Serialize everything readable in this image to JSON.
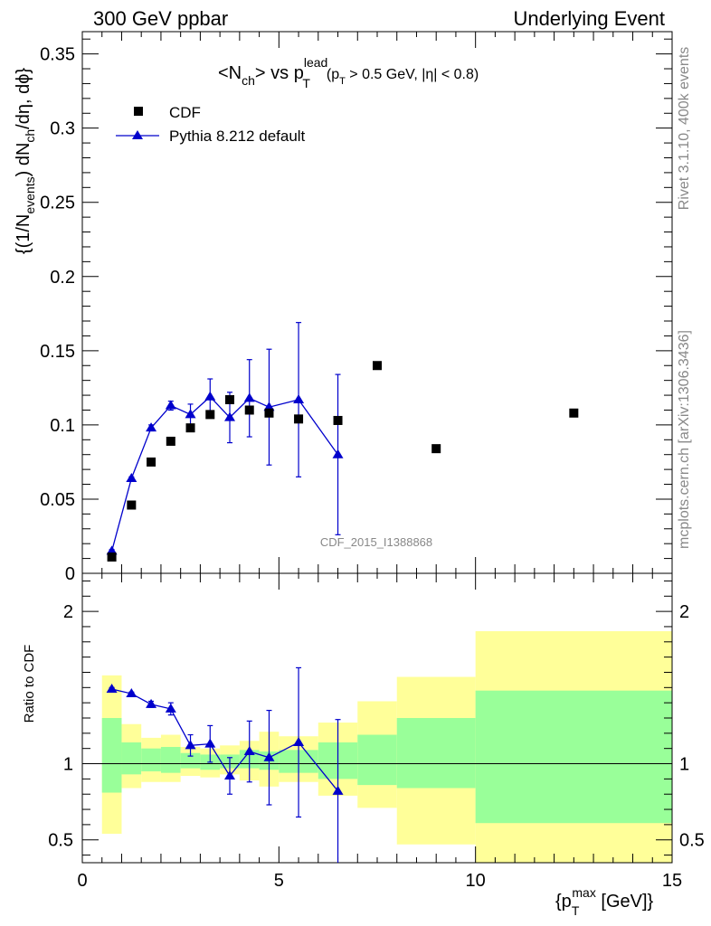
{
  "header": {
    "left_label": "300 GeV ppbar",
    "right_label": "Underlying Event"
  },
  "side_labels": {
    "top": "Rivet 3.1.10,  400k events",
    "bottom": "mcplots.cern.ch [arXiv:1306.3436]"
  },
  "watermark": "CDF_2015_I1388868",
  "title": {
    "main": "<N",
    "sub_ch": "ch",
    "vs": "> vs p",
    "sup_lead": "lead",
    "sub_T": "T",
    "cut_open": "(p",
    "cut_sub_T": "T",
    "cut_rest": " > 0.5 GeV, |η| < 0.8)"
  },
  "ylabel_main": {
    "p1": "{(1/N",
    "s1": "events",
    "p2": ") dN",
    "s2": "ch",
    "p3": "/dη, dϕ}"
  },
  "ylabel_ratio": "Ratio to CDF",
  "xlabel": {
    "p1": "{p",
    "sub": "T",
    "sup": "max",
    "p2": " [GeV]}"
  },
  "legend": {
    "data_label": "CDF",
    "mc_label": "Pythia 8.212 default"
  },
  "colors": {
    "mc": "#0000cc",
    "data": "#000000",
    "band_inner": "#99ff99",
    "band_outer": "#ffff99",
    "frame": "#000000"
  },
  "chart_data": [
    {
      "type": "scatter",
      "panel": "main",
      "xlim": [
        0,
        15
      ],
      "ylim": [
        0,
        0.365
      ],
      "x_ticks": [
        "0",
        "5",
        "10",
        "15"
      ],
      "y_ticks": [
        "0",
        "0.05",
        "0.1",
        "0.15",
        "0.2",
        "0.25",
        "0.3",
        "0.35"
      ],
      "series": [
        {
          "name": "CDF",
          "x": [
            0.75,
            1.25,
            1.75,
            2.25,
            2.75,
            3.25,
            3.75,
            4.25,
            4.75,
            5.5,
            6.5,
            7.5,
            9.0,
            12.5
          ],
          "y": [
            0.011,
            0.046,
            0.075,
            0.089,
            0.098,
            0.107,
            0.117,
            0.11,
            0.108,
            0.104,
            0.103,
            0.14,
            0.084,
            0.108
          ]
        },
        {
          "name": "Pythia 8.212 default",
          "x": [
            0.75,
            1.25,
            1.75,
            2.25,
            2.75,
            3.25,
            3.75,
            4.25,
            4.75,
            5.5,
            6.5
          ],
          "y": [
            0.015,
            0.064,
            0.098,
            0.113,
            0.107,
            0.119,
            0.105,
            0.118,
            0.112,
            0.117,
            0.08
          ],
          "err": [
            0.001,
            0.001,
            0.002,
            0.003,
            0.007,
            0.012,
            0.017,
            0.026,
            0.039,
            0.052,
            0.054
          ]
        }
      ]
    },
    {
      "type": "scatter",
      "panel": "ratio",
      "xlim": [
        0,
        15
      ],
      "ylim": [
        0.35,
        2.25
      ],
      "x_ticks": [
        "0",
        "5",
        "10",
        "15"
      ],
      "y_ticks": [
        "0.5",
        "1",
        "2"
      ],
      "series": [
        {
          "name": "Pythia 8.212 default",
          "x": [
            0.75,
            1.25,
            1.75,
            2.25,
            2.75,
            3.25,
            3.75,
            4.25,
            4.75,
            5.5,
            6.5
          ],
          "y": [
            1.49,
            1.46,
            1.39,
            1.36,
            1.12,
            1.13,
            0.92,
            1.08,
            1.04,
            1.14,
            0.82
          ],
          "err": [
            0.01,
            0.01,
            0.02,
            0.04,
            0.07,
            0.12,
            0.12,
            0.2,
            0.31,
            0.49,
            0.47
          ]
        }
      ],
      "bands": {
        "x_edges": [
          0.5,
          1.0,
          1.5,
          2.0,
          2.5,
          3.0,
          3.5,
          4.0,
          4.5,
          5.0,
          6.0,
          7.0,
          8.0,
          10.0,
          15.0
        ],
        "inner_low": [
          0.81,
          0.93,
          0.95,
          0.94,
          0.97,
          0.96,
          0.97,
          0.97,
          0.96,
          0.94,
          0.9,
          0.86,
          0.84,
          0.61
        ],
        "inner_high": [
          1.3,
          1.14,
          1.1,
          1.11,
          1.07,
          1.06,
          1.06,
          1.09,
          1.08,
          1.09,
          1.14,
          1.19,
          1.3,
          1.48
        ],
        "outer_low": [
          0.54,
          0.84,
          0.88,
          0.88,
          0.92,
          0.91,
          0.93,
          0.89,
          0.85,
          0.88,
          0.79,
          0.71,
          0.47,
          0.34
        ],
        "outer_high": [
          1.58,
          1.26,
          1.17,
          1.19,
          1.11,
          1.1,
          1.12,
          1.15,
          1.21,
          1.18,
          1.27,
          1.41,
          1.57,
          1.87
        ]
      }
    }
  ]
}
